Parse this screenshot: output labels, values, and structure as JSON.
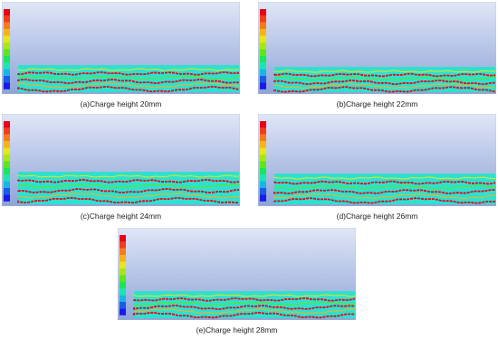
{
  "panels": [
    {
      "caption": "(a)Charge height 20mm"
    },
    {
      "caption": "(b)Charge height 22mm"
    },
    {
      "caption": "(c)Charge height 24mm"
    },
    {
      "caption": "(d)Charge height 26mm"
    },
    {
      "caption": "(e)Charge height 28mm"
    }
  ]
}
